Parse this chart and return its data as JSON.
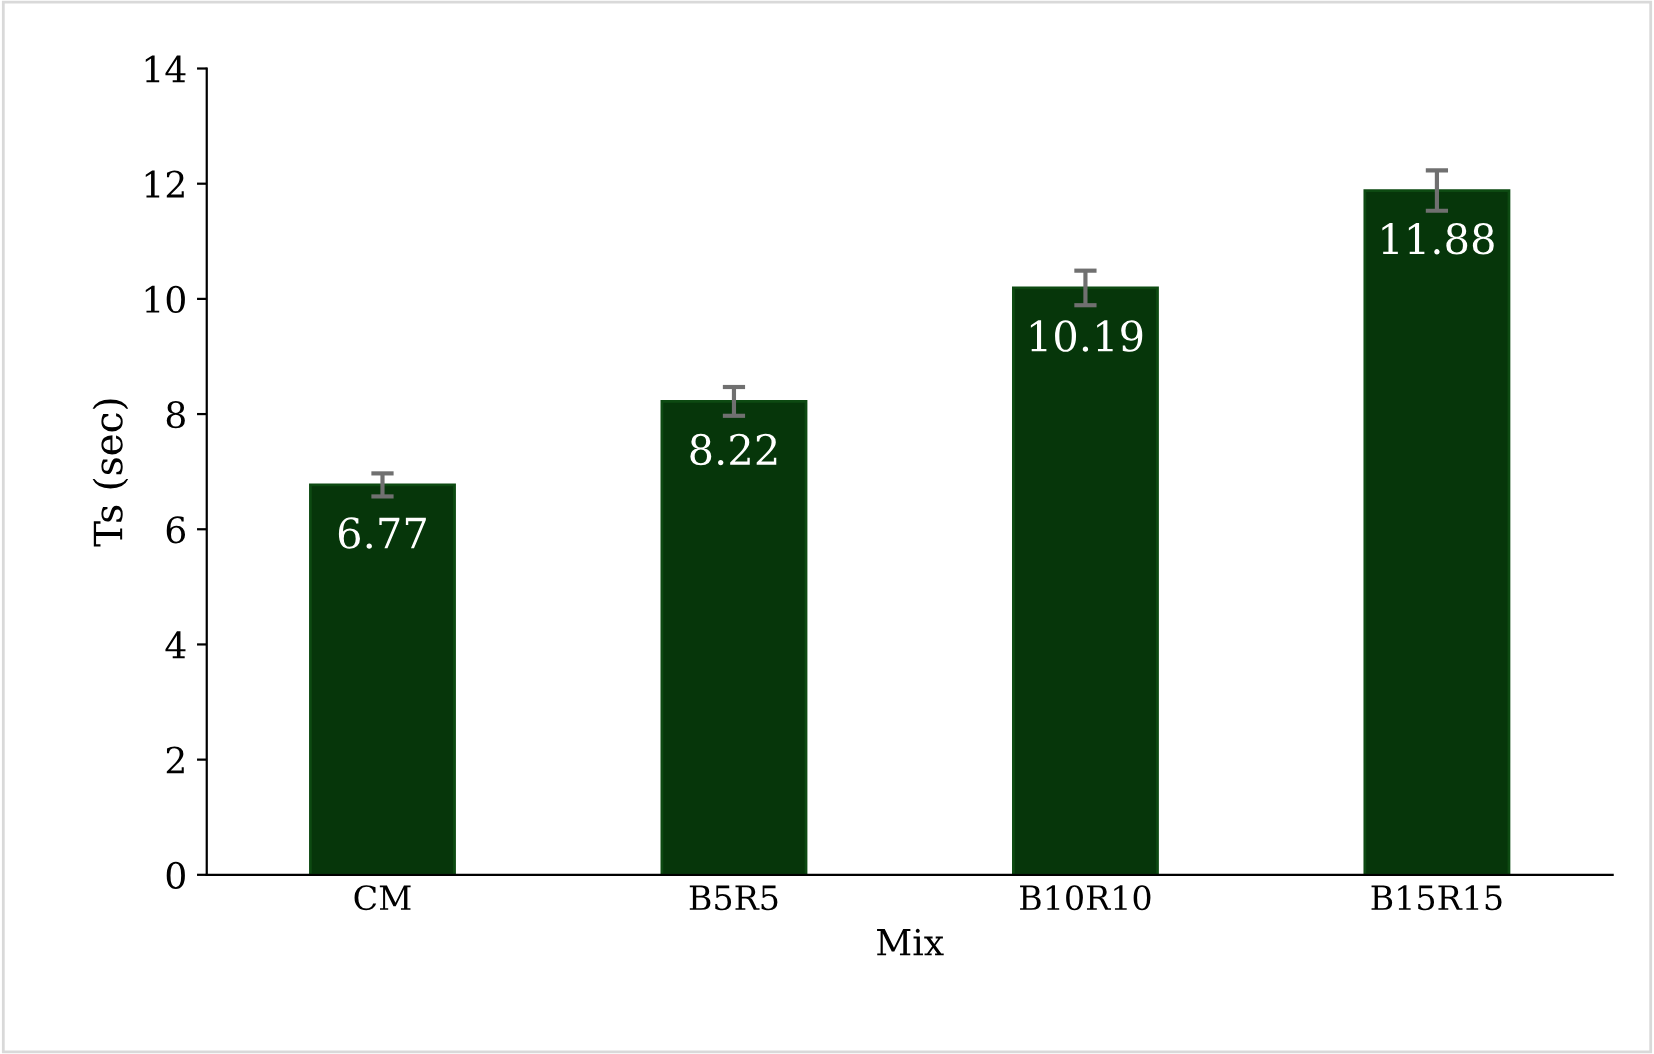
{
  "chart_data": {
    "type": "bar",
    "xlabel": "Mix",
    "ylabel": "Ts (sec)",
    "categories": [
      "CM",
      "B5R5",
      "B10R10",
      "B15R15"
    ],
    "values": [
      6.77,
      8.22,
      10.19,
      11.88
    ],
    "errors": [
      0.2,
      0.25,
      0.3,
      0.35
    ],
    "color": "#06360a",
    "data_labels": true,
    "ylim": [
      0,
      14
    ],
    "yticks": [
      0,
      2,
      4,
      6,
      8,
      10,
      12,
      14
    ],
    "grid": false,
    "legend": false
  }
}
